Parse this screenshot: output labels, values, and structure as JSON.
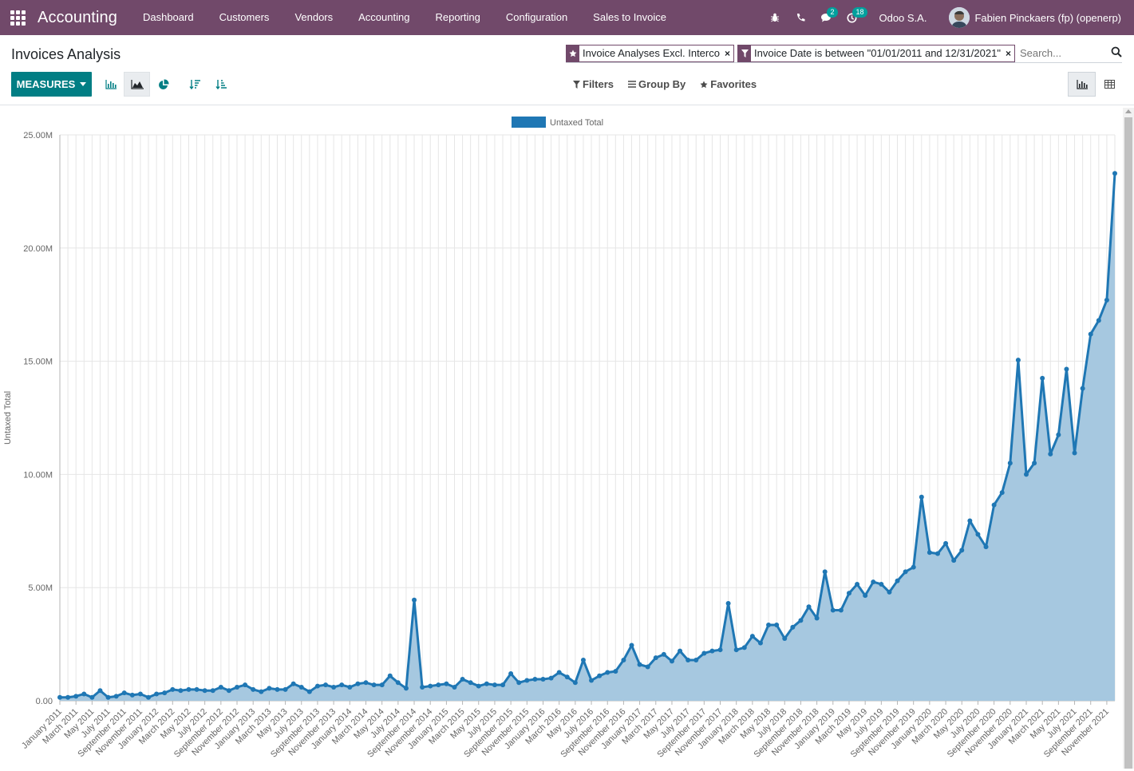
{
  "navbar": {
    "app_name": "Accounting",
    "menu": [
      "Dashboard",
      "Customers",
      "Vendors",
      "Accounting",
      "Reporting",
      "Configuration",
      "Sales to Invoice"
    ],
    "chat_badge": "2",
    "activity_badge": "18",
    "company": "Odoo S.A.",
    "user": "Fabien Pinckaers (fp) (openerp)"
  },
  "control_panel": {
    "title": "Invoices Analysis",
    "measures_label": "MEASURES",
    "facets": [
      {
        "icon": "star-icon",
        "value": "Invoice Analyses Excl. Interco"
      },
      {
        "icon": "filter-icon",
        "value": "Invoice Date is between \"01/01/2011 and 12/31/2021\""
      }
    ],
    "search_placeholder": "Search...",
    "filters_label": "Filters",
    "groupby_label": "Group By",
    "favorites_label": "Favorites",
    "active_chart_mode": "line",
    "active_view": "graph"
  },
  "colors": {
    "navbar": "#71496a",
    "primary_button": "#017e84",
    "series_line": "#1f77b4",
    "series_fill": "#a6c8e0"
  },
  "chart_data": {
    "type": "area",
    "legend": [
      "Untaxed Total"
    ],
    "legend_position": "top-center",
    "ylabel": "Untaxed Total",
    "xlabel": "",
    "ylim": [
      0,
      25000000
    ],
    "y_ticks": [
      "0.00",
      "5.00M",
      "10.00M",
      "15.00M",
      "20.00M",
      "25.00M"
    ],
    "grid": true,
    "x_tick_labels": [
      "January 2011",
      "March 2011",
      "May 2011",
      "July 2011",
      "September 2011",
      "November 2011",
      "January 2012",
      "March 2012",
      "May 2012",
      "July 2012",
      "September 2012",
      "November 2012",
      "January 2013",
      "March 2013",
      "May 2013",
      "July 2013",
      "September 2013",
      "November 2013",
      "January 2014",
      "March 2014",
      "May 2014",
      "July 2014",
      "September 2014",
      "November 2014",
      "January 2015",
      "March 2015",
      "May 2015",
      "July 2015",
      "September 2015",
      "November 2015",
      "January 2016",
      "March 2016",
      "May 2016",
      "July 2016",
      "September 2016",
      "November 2016",
      "January 2017",
      "March 2017",
      "May 2017",
      "July 2017",
      "September 2017",
      "November 2017",
      "January 2018",
      "March 2018",
      "May 2018",
      "July 2018",
      "September 2018",
      "November 2018",
      "January 2019",
      "March 2019",
      "May 2019",
      "July 2019",
      "September 2019",
      "November 2019",
      "January 2020",
      "March 2020",
      "May 2020",
      "July 2020",
      "September 2020",
      "November 2020",
      "January 2021",
      "March 2021",
      "May 2021",
      "July 2021",
      "September 2021",
      "November 2021"
    ],
    "series": [
      {
        "name": "Untaxed Total",
        "values": [
          0.15,
          0.15,
          0.2,
          0.3,
          0.15,
          0.45,
          0.15,
          0.2,
          0.35,
          0.25,
          0.3,
          0.15,
          0.3,
          0.35,
          0.5,
          0.45,
          0.5,
          0.5,
          0.45,
          0.45,
          0.6,
          0.45,
          0.6,
          0.7,
          0.5,
          0.4,
          0.55,
          0.5,
          0.5,
          0.75,
          0.6,
          0.4,
          0.65,
          0.7,
          0.6,
          0.7,
          0.6,
          0.75,
          0.8,
          0.7,
          0.7,
          1.1,
          0.8,
          0.55,
          4.45,
          0.6,
          0.65,
          0.7,
          0.75,
          0.6,
          0.95,
          0.8,
          0.65,
          0.75,
          0.7,
          0.7,
          1.2,
          0.8,
          0.9,
          0.95,
          0.95,
          1.0,
          1.25,
          1.05,
          0.8,
          1.8,
          0.9,
          1.1,
          1.25,
          1.3,
          1.8,
          2.45,
          1.6,
          1.5,
          1.9,
          2.05,
          1.75,
          2.2,
          1.8,
          1.8,
          2.1,
          2.2,
          2.25,
          4.3,
          2.25,
          2.35,
          2.85,
          2.55,
          3.35,
          3.35,
          2.75,
          3.25,
          3.55,
          4.15,
          3.65,
          5.7,
          4.0,
          4.0,
          4.75,
          5.15,
          4.65,
          5.25,
          5.15,
          4.8,
          5.3,
          5.7,
          5.9,
          9.0,
          6.55,
          6.5,
          6.95,
          6.2,
          6.65,
          7.95,
          7.35,
          6.8,
          8.65,
          9.2,
          10.5,
          15.05,
          10.0,
          10.5,
          14.25,
          10.9,
          11.75,
          14.65,
          10.95,
          13.8,
          16.2,
          16.8,
          17.7,
          23.3
        ]
      }
    ]
  }
}
